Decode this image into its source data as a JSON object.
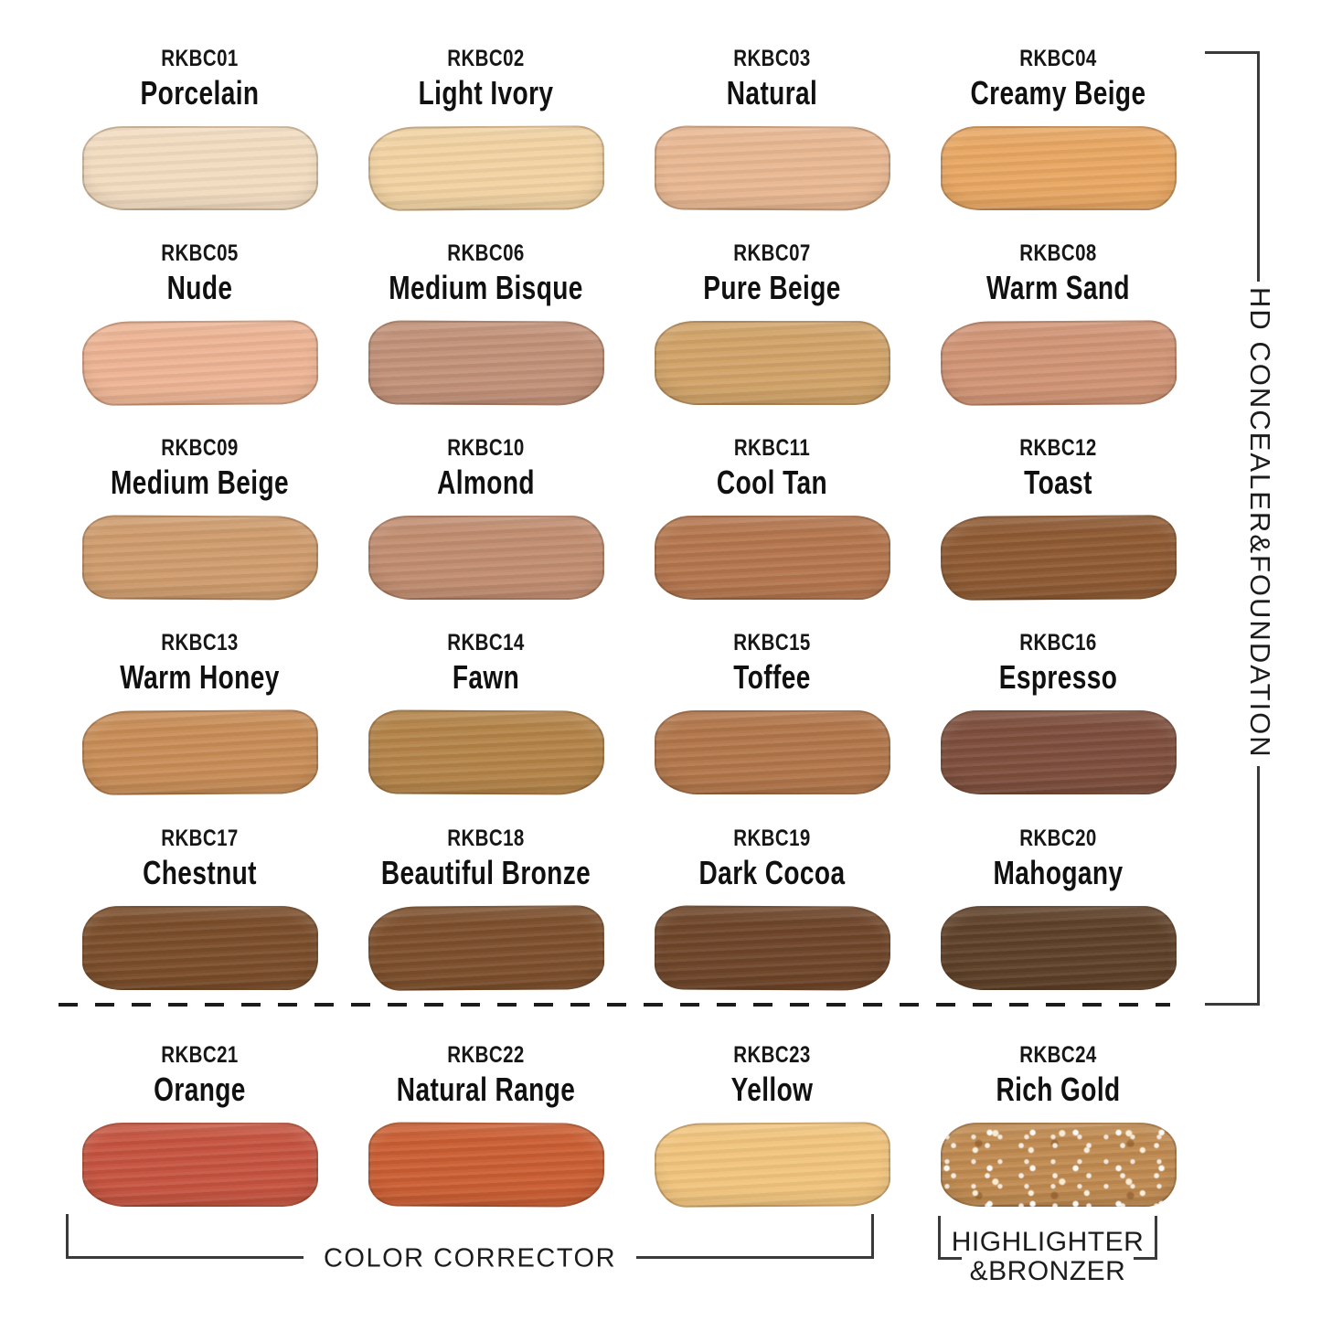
{
  "shades": [
    {
      "code": "RKBC01",
      "name": "Porcelain",
      "color": "#f2dcc0"
    },
    {
      "code": "RKBC02",
      "name": "Light Ivory",
      "color": "#f1d2a2"
    },
    {
      "code": "RKBC03",
      "name": "Natural",
      "color": "#e9b892"
    },
    {
      "code": "RKBC04",
      "name": "Creamy Beige",
      "color": "#e8a763"
    },
    {
      "code": "RKBC05",
      "name": "Nude",
      "color": "#edb494"
    },
    {
      "code": "RKBC06",
      "name": "Medium Bisque",
      "color": "#c29178"
    },
    {
      "code": "RKBC07",
      "name": "Pure Beige",
      "color": "#d1a368"
    },
    {
      "code": "RKBC08",
      "name": "Warm Sand",
      "color": "#d19475"
    },
    {
      "code": "RKBC09",
      "name": "Medium Beige",
      "color": "#cf9c6d"
    },
    {
      "code": "RKBC10",
      "name": "Almond",
      "color": "#c18d70"
    },
    {
      "code": "RKBC11",
      "name": "Cool Tan",
      "color": "#b4764e"
    },
    {
      "code": "RKBC12",
      "name": "Toast",
      "color": "#8e5a33"
    },
    {
      "code": "RKBC13",
      "name": "Warm Honey",
      "color": "#c88d57"
    },
    {
      "code": "RKBC14",
      "name": "Fawn",
      "color": "#b48449"
    },
    {
      "code": "RKBC15",
      "name": "Toffee",
      "color": "#b2764a"
    },
    {
      "code": "RKBC16",
      "name": "Espresso",
      "color": "#7d4e3c"
    },
    {
      "code": "RKBC17",
      "name": "Chestnut",
      "color": "#7a4d2a"
    },
    {
      "code": "RKBC18",
      "name": "Beautiful Bronze",
      "color": "#7c4f2c"
    },
    {
      "code": "RKBC19",
      "name": "Dark Cocoa",
      "color": "#6e4529"
    },
    {
      "code": "RKBC20",
      "name": "Mahogany",
      "color": "#5e4028"
    },
    {
      "code": "RKBC21",
      "name": "Orange",
      "color": "#c55440"
    },
    {
      "code": "RKBC22",
      "name": "Natural Range",
      "color": "#ca5e33"
    },
    {
      "code": "RKBC23",
      "name": "Yellow",
      "color": "#f1c47d"
    },
    {
      "code": "RKBC24",
      "name": "Rich Gold",
      "color": "#bf8a50"
    }
  ],
  "sections": {
    "right_label": "HD CONCEALER&FOUNDATION",
    "color_corrector_label": "COLOR CORRECTOR",
    "highlighter_label_line1": "HIGHLIGHTER",
    "highlighter_label_line2": "&BRONZER"
  },
  "colors": {
    "background": "#ffffff",
    "line": "#3a3a3a",
    "text": "#1c1c1c"
  }
}
